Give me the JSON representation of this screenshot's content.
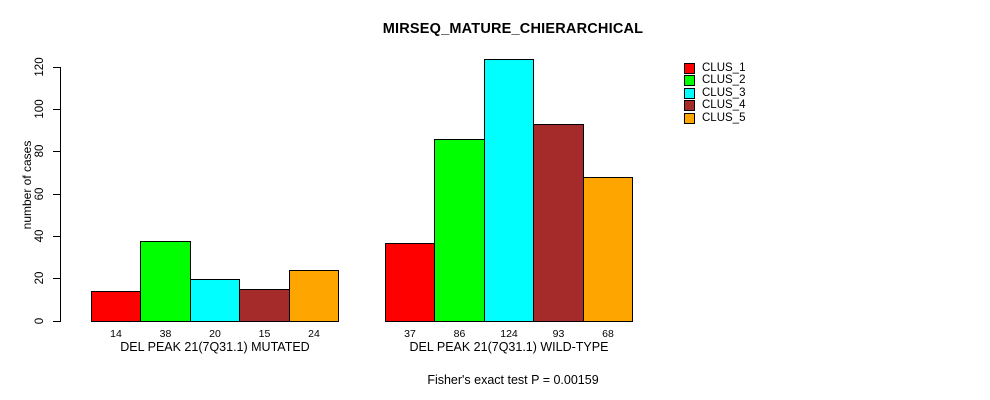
{
  "chart_data": {
    "type": "bar",
    "title": "MIRSEQ_MATURE_CHIERARCHICAL",
    "ylabel": "number of cases",
    "xlabel": "",
    "caption": "Fisher's exact test P = 0.00159",
    "ylim": [
      0,
      128
    ],
    "yticks": [
      0,
      20,
      40,
      60,
      80,
      100,
      120
    ],
    "grid": false,
    "legend_position": "right",
    "bar_value_labels_shown": true,
    "categories": [
      "DEL PEAK 21(7Q31.1) MUTATED",
      "DEL PEAK 21(7Q31.1) WILD-TYPE"
    ],
    "series": [
      {
        "name": "CLUS_1",
        "color": "#FF0000",
        "values": [
          14,
          37
        ]
      },
      {
        "name": "CLUS_2",
        "color": "#00FF00",
        "values": [
          38,
          86
        ]
      },
      {
        "name": "CLUS_3",
        "color": "#00FFFF",
        "values": [
          20,
          124
        ]
      },
      {
        "name": "CLUS_4",
        "color": "#A52A2A",
        "values": [
          15,
          93
        ]
      },
      {
        "name": "CLUS_5",
        "color": "#FFA500",
        "values": [
          24,
          68
        ]
      }
    ]
  }
}
